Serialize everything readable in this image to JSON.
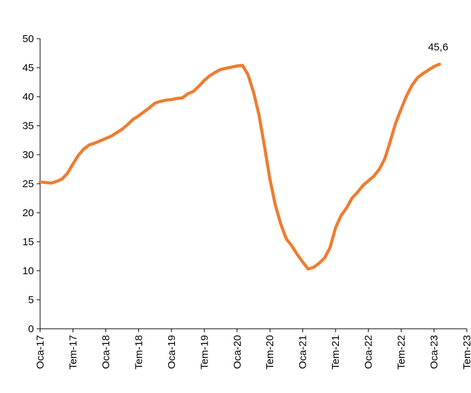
{
  "chart_data": {
    "type": "line",
    "categories": [
      "Oca-17",
      null,
      null,
      null,
      null,
      null,
      "Tem-17",
      null,
      null,
      null,
      null,
      null,
      "Oca-18",
      null,
      null,
      null,
      null,
      null,
      "Tem-18",
      null,
      null,
      null,
      null,
      null,
      "Oca-19",
      null,
      null,
      null,
      null,
      null,
      "Tem-19",
      null,
      null,
      null,
      null,
      null,
      "Oca-20",
      null,
      null,
      null,
      null,
      null,
      "Tem-20",
      null,
      null,
      null,
      null,
      null,
      "Oca-21",
      null,
      null,
      null,
      null,
      null,
      "Tem-21",
      null,
      null,
      null,
      null,
      null,
      "Oca-22",
      null,
      null,
      null,
      null,
      null,
      "Tem-22",
      null,
      null,
      null,
      null,
      null,
      "Oca-23",
      null,
      null,
      null,
      null,
      null,
      "Tem-23"
    ],
    "series": [
      {
        "color": "#ed7d31",
        "values": [
          25.3,
          25.2,
          25.1,
          25.4,
          25.8,
          26.8,
          28.4,
          29.9,
          31.0,
          31.7,
          32.0,
          32.4,
          32.8,
          33.2,
          33.8,
          34.4,
          35.2,
          36.1,
          36.7,
          37.4,
          38.1,
          38.9,
          39.2,
          39.4,
          39.5,
          39.7,
          39.8,
          40.5,
          40.9,
          41.8,
          42.8,
          43.6,
          44.2,
          44.7,
          44.9,
          45.1,
          45.3,
          45.4,
          43.8,
          40.8,
          36.9,
          31.5,
          25.8,
          21.3,
          18.0,
          15.5,
          14.3,
          12.8,
          11.5,
          10.3,
          10.6,
          11.3,
          12.2,
          14.0,
          17.4,
          19.5,
          20.8,
          22.5,
          23.5,
          24.7,
          25.5,
          26.3,
          27.5,
          29.3,
          32.3,
          35.5,
          37.9,
          40.2,
          42.0,
          43.3,
          44.0,
          44.6,
          45.2,
          45.6,
          null,
          null,
          null,
          null,
          null
        ],
        "value_labels": [
          null,
          null,
          null,
          null,
          null,
          null,
          null,
          null,
          null,
          null,
          null,
          null,
          null,
          null,
          null,
          null,
          null,
          null,
          null,
          null,
          null,
          null,
          null,
          null,
          null,
          null,
          null,
          null,
          null,
          null,
          null,
          null,
          null,
          null,
          null,
          null,
          null,
          null,
          null,
          null,
          null,
          null,
          null,
          null,
          null,
          null,
          null,
          null,
          null,
          null,
          null,
          null,
          null,
          null,
          null,
          null,
          null,
          null,
          null,
          null,
          null,
          null,
          null,
          null,
          null,
          null,
          null,
          null,
          null,
          null,
          null,
          null,
          null,
          "45,6",
          null,
          null,
          null,
          null,
          null
        ]
      }
    ],
    "ylim": [
      0,
      50
    ],
    "yticks": [
      0,
      5,
      10,
      15,
      20,
      25,
      30,
      35,
      40,
      45,
      50
    ]
  }
}
